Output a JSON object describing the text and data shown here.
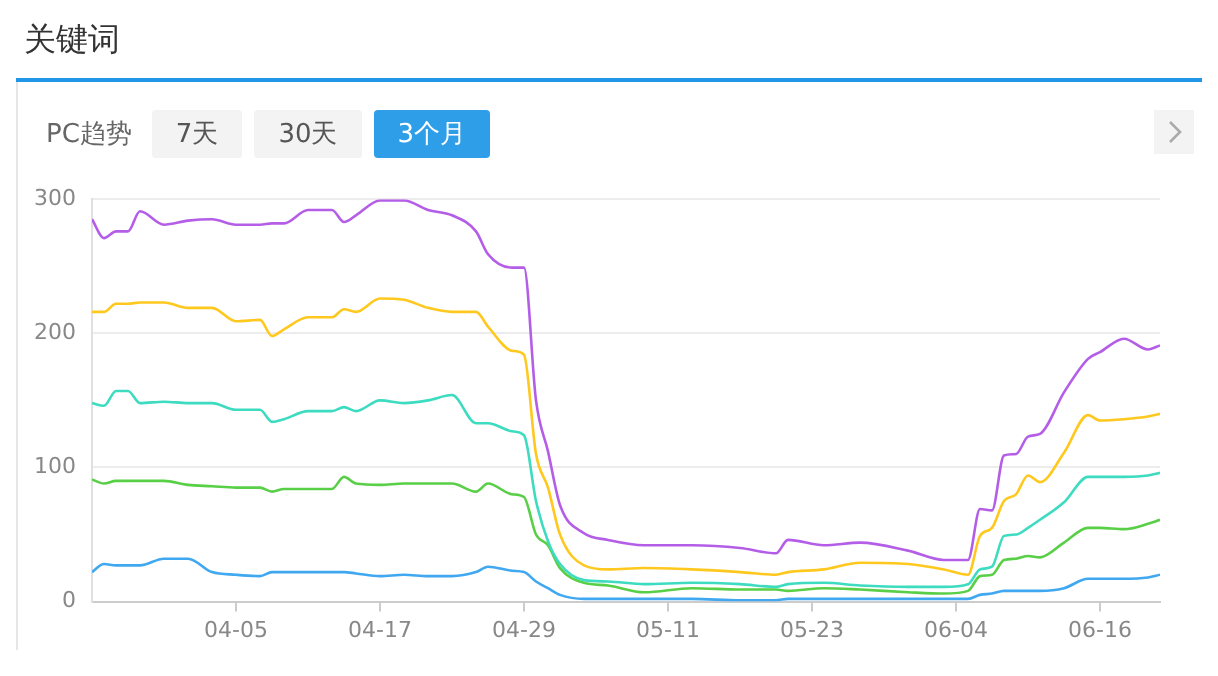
{
  "chart_data": {
    "type": "line",
    "title": "关键词",
    "subtitle": "PC趋势",
    "annotations": [
      "7天",
      "30天",
      "3个月"
    ],
    "x": [
      "--03-24",
      "--03-25",
      "--03-26",
      "--03-27",
      "--03-28",
      "--03-30",
      "--04-01",
      "--04-03",
      "--04-05",
      "--04-07",
      "--04-08",
      "--04-09",
      "--04-11",
      "--04-13",
      "--04-14",
      "--04-15",
      "--04-17",
      "--04-19",
      "--04-21",
      "--04-23",
      "--04-25",
      "--04-26",
      "--04-28",
      "--04-29",
      "--04-30",
      "--05-01",
      "--05-02",
      "--05-04",
      "--05-06",
      "--05-09",
      "--05-13",
      "--05-17",
      "--05-20",
      "--05-21",
      "--05-24",
      "--05-27",
      "--05-31",
      "--06-03",
      "--06-05",
      "--06-06",
      "--06-07",
      "--06-08",
      "--06-09",
      "--06-10",
      "--06-11",
      "--06-13",
      "--06-15",
      "--06-16",
      "--06-18",
      "--06-20",
      "--06-21"
    ],
    "series": [
      {
        "color": "#b45ee8",
        "values": [
          285,
          271,
          276,
          276,
          291,
          281,
          284,
          285,
          281,
          281,
          282,
          282,
          292,
          292,
          283,
          288,
          299,
          299,
          292,
          288,
          276,
          259,
          249,
          249,
          150,
          112,
          72,
          51,
          46,
          42,
          42,
          40,
          36,
          46,
          42,
          44,
          38,
          31,
          31,
          69,
          68,
          109,
          110,
          123,
          125,
          156,
          181,
          186,
          196,
          188,
          191
        ]
      },
      {
        "color": "#ffc81e",
        "values": [
          216,
          216,
          222,
          222,
          223,
          223,
          219,
          219,
          209,
          210,
          198,
          203,
          212,
          212,
          218,
          216,
          226,
          225,
          219,
          216,
          216,
          205,
          187,
          184,
          110,
          85,
          50,
          27,
          24,
          25,
          24,
          22,
          20,
          22,
          24,
          29,
          28,
          24,
          20,
          49,
          55,
          75,
          80,
          94,
          89,
          111,
          139,
          135,
          136,
          138,
          140
        ]
      },
      {
        "color": "#3ddbc0",
        "values": [
          148,
          146,
          157,
          157,
          148,
          149,
          148,
          148,
          143,
          143,
          134,
          136,
          142,
          142,
          145,
          142,
          150,
          148,
          150,
          154,
          133,
          133,
          127,
          124,
          75,
          45,
          28,
          16,
          15,
          13,
          14,
          13,
          11,
          13,
          14,
          12,
          11,
          11,
          13,
          24,
          26,
          49,
          50,
          55,
          61,
          74,
          93,
          93,
          93,
          94,
          96
        ]
      },
      {
        "color": "#58cf46",
        "values": [
          91,
          88,
          90,
          90,
          90,
          90,
          87,
          86,
          85,
          85,
          82,
          84,
          84,
          84,
          93,
          88,
          87,
          88,
          88,
          88,
          82,
          88,
          80,
          78,
          50,
          42,
          25,
          14,
          12,
          7,
          10,
          9,
          9,
          8,
          10,
          9,
          7,
          6,
          8,
          19,
          20,
          31,
          32,
          34,
          33,
          44,
          55,
          55,
          54,
          58,
          61
        ]
      },
      {
        "color": "#3fa8f0",
        "values": [
          22,
          28,
          27,
          27,
          27,
          32,
          32,
          22,
          20,
          19,
          22,
          22,
          22,
          22,
          22,
          21,
          19,
          20,
          19,
          19,
          22,
          26,
          23,
          22,
          15,
          10,
          5,
          2,
          2,
          2,
          2,
          1,
          1,
          2,
          2,
          2,
          2,
          2,
          2,
          5,
          6,
          8,
          8,
          8,
          8,
          10,
          17,
          17,
          17,
          18,
          20
        ]
      }
    ],
    "xlim": [
      "--03-24",
      "--06-21"
    ],
    "xticks": [
      {
        "value": "--04-05",
        "label": "04-05"
      },
      {
        "value": "--04-17",
        "label": "04-17"
      },
      {
        "value": "--04-29",
        "label": "04-29"
      },
      {
        "value": "--05-11",
        "label": "05-11"
      },
      {
        "value": "--05-23",
        "label": "05-23"
      },
      {
        "value": "--06-04",
        "label": "06-04"
      },
      {
        "value": "--06-16",
        "label": "06-16"
      }
    ],
    "ylim": [
      0,
      300
    ],
    "yticks": [
      0,
      100,
      200,
      300
    ],
    "grid": "y",
    "legend": false,
    "marker": "none",
    "line_style": "solid"
  }
}
